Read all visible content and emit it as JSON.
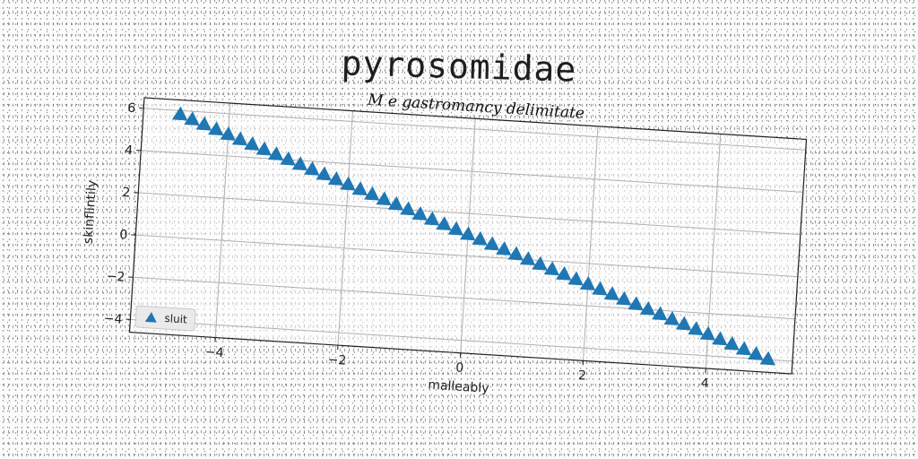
{
  "page_title": "pyrosomidae",
  "chart_data": {
    "type": "scatter",
    "title": "M e gastromancy delimitate",
    "xlabel": "malleably",
    "ylabel": "skinflintily",
    "xlim": [
      -5.4,
      5.4
    ],
    "ylim": [
      -4.6,
      6.5
    ],
    "xticks": [
      -4,
      -2,
      0,
      2,
      4
    ],
    "yticks": [
      -4,
      -2,
      0,
      2,
      4,
      6
    ],
    "xtick_labels": [
      "−4",
      "−2",
      "0",
      "2",
      "4"
    ],
    "ytick_labels": [
      "−4",
      "−2",
      "0",
      "2",
      "4",
      "6"
    ],
    "grid": true,
    "legend_position": "lower-left",
    "marker": "triangle-up",
    "color": "#1f77b4",
    "series": [
      {
        "name": "sluit",
        "x": [
          -4.8,
          -4.6,
          -4.4,
          -4.2,
          -4.0,
          -3.8,
          -3.6,
          -3.4,
          -3.2,
          -3.0,
          -2.8,
          -2.6,
          -2.4,
          -2.2,
          -2.0,
          -1.8,
          -1.6,
          -1.4,
          -1.2,
          -1.0,
          -0.8,
          -0.6,
          -0.4,
          -0.2,
          0.0,
          0.2,
          0.4,
          0.6,
          0.8,
          1.0,
          1.2,
          1.4,
          1.6,
          1.8,
          2.0,
          2.2,
          2.4,
          2.6,
          2.8,
          3.0,
          3.2,
          3.4,
          3.6,
          3.8,
          4.0,
          4.2,
          4.4,
          4.6,
          4.8,
          5.0
        ],
        "y": [
          5.8,
          5.6,
          5.4,
          5.2,
          5.0,
          4.8,
          4.6,
          4.4,
          4.2,
          4.0,
          3.8,
          3.6,
          3.4,
          3.2,
          3.0,
          2.8,
          2.6,
          2.4,
          2.2,
          2.0,
          1.8,
          1.6,
          1.4,
          1.2,
          1.0,
          0.8,
          0.6,
          0.4,
          0.2,
          0.0,
          -0.2,
          -0.4,
          -0.6,
          -0.8,
          -1.0,
          -1.2,
          -1.4,
          -1.6,
          -1.8,
          -2.0,
          -2.2,
          -2.4,
          -2.6,
          -2.8,
          -3.0,
          -3.2,
          -3.4,
          -3.6,
          -3.8,
          -4.0
        ]
      }
    ]
  }
}
